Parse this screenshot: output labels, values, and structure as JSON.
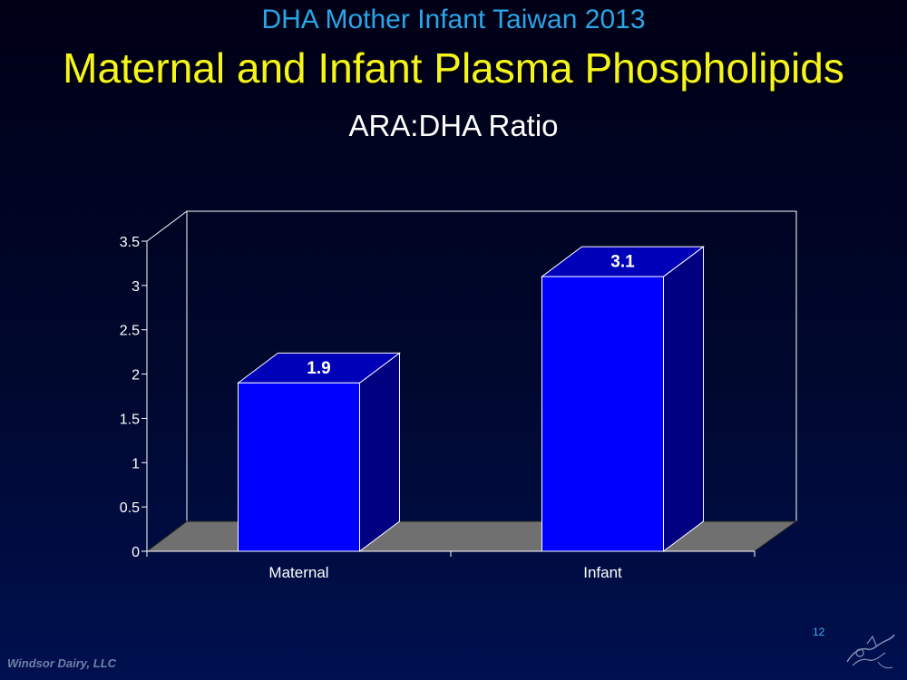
{
  "slide": {
    "supertitle": "DHA Mother Infant Taiwan 2013",
    "title": "Maternal and Infant Plasma Phospholipids",
    "footer": "Windsor Dairy, LLC",
    "page_number": "12"
  },
  "chart_data": {
    "type": "bar",
    "title": "ARA:DHA Ratio",
    "categories": [
      "Maternal",
      "Infant"
    ],
    "values": [
      1.9,
      3.1
    ],
    "data_labels": [
      "1.9",
      "3.1"
    ],
    "yticks": [
      "0",
      "0.5",
      "1",
      "1.5",
      "2",
      "2.5",
      "3",
      "3.5"
    ],
    "ylim": [
      0,
      3.5
    ],
    "xlabel": "",
    "ylabel": "",
    "grid": false,
    "legend": "none",
    "colors": {
      "bar": "#0000ff",
      "bar_side": "#000080",
      "floor": "#707070",
      "axis": "#ffffff"
    }
  }
}
